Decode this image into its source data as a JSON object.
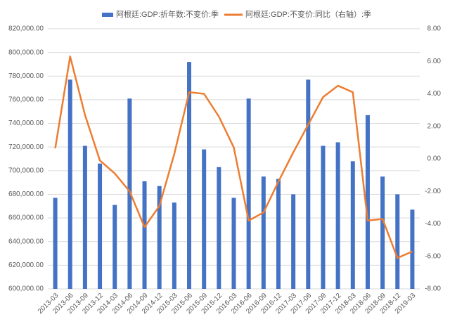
{
  "chart_data": {
    "type": "bar_line",
    "categories": [
      "2013-03",
      "2013-06",
      "2013-09",
      "2013-12",
      "2014-03",
      "2014-06",
      "2014-09",
      "2014-12",
      "2015-03",
      "2015-06",
      "2015-09",
      "2015-12",
      "2016-03",
      "2016-06",
      "2016-09",
      "2016-12",
      "2017-03",
      "2017-06",
      "2017-09",
      "2017-12",
      "2018-03",
      "2018-06",
      "2018-09",
      "2018-12",
      "2019-03"
    ],
    "series": [
      {
        "name": "阿根廷:GDP:折年数:不变价:季",
        "type": "bar",
        "color": "#4472c4",
        "axis": "y",
        "values": [
          677000,
          777000,
          721000,
          706000,
          671000,
          761000,
          691000,
          687000,
          673000,
          792000,
          718000,
          703000,
          677000,
          761000,
          695000,
          693000,
          680000,
          777000,
          721000,
          724000,
          708000,
          747000,
          695000,
          680000,
          667000
        ]
      },
      {
        "name": "阿根廷:GDP:不变价:同比（右轴）:季",
        "type": "line",
        "color": "#ed7d31",
        "axis": "y2",
        "values": [
          0.65,
          6.3,
          2.7,
          -0.1,
          -0.9,
          -2.0,
          -4.2,
          -2.9,
          0.3,
          4.1,
          4.0,
          2.6,
          0.7,
          -3.8,
          -3.3,
          -1.4,
          0.4,
          2.1,
          3.8,
          4.5,
          4.1,
          -3.8,
          -3.7,
          -6.1,
          -5.7
        ]
      }
    ],
    "ylim": [
      600000,
      820000
    ],
    "yticks": [
      {
        "value": 600000,
        "label": "600,000.00"
      },
      {
        "value": 620000,
        "label": "620,000.00"
      },
      {
        "value": 640000,
        "label": "640,000.00"
      },
      {
        "value": 660000,
        "label": "660,000.00"
      },
      {
        "value": 680000,
        "label": "680,000.00"
      },
      {
        "value": 700000,
        "label": "700,000.00"
      },
      {
        "value": 720000,
        "label": "720,000.00"
      },
      {
        "value": 740000,
        "label": "740,000.00"
      },
      {
        "value": 760000,
        "label": "760,000.00"
      },
      {
        "value": 780000,
        "label": "780,000.00"
      },
      {
        "value": 800000,
        "label": "800,000.00"
      },
      {
        "value": 820000,
        "label": "820,000.00"
      }
    ],
    "y2lim": [
      -8,
      8
    ],
    "y2ticks": [
      {
        "value": -8,
        "label": "-8.00"
      },
      {
        "value": -6,
        "label": "-6.00"
      },
      {
        "value": -4,
        "label": "-4.00"
      },
      {
        "value": -2,
        "label": "-2.00"
      },
      {
        "value": 0,
        "label": "0.00"
      },
      {
        "value": 2,
        "label": "2.00"
      },
      {
        "value": 4,
        "label": "4.00"
      },
      {
        "value": 6,
        "label": "6.00"
      },
      {
        "value": 8,
        "label": "8.00"
      }
    ],
    "grid": true
  }
}
